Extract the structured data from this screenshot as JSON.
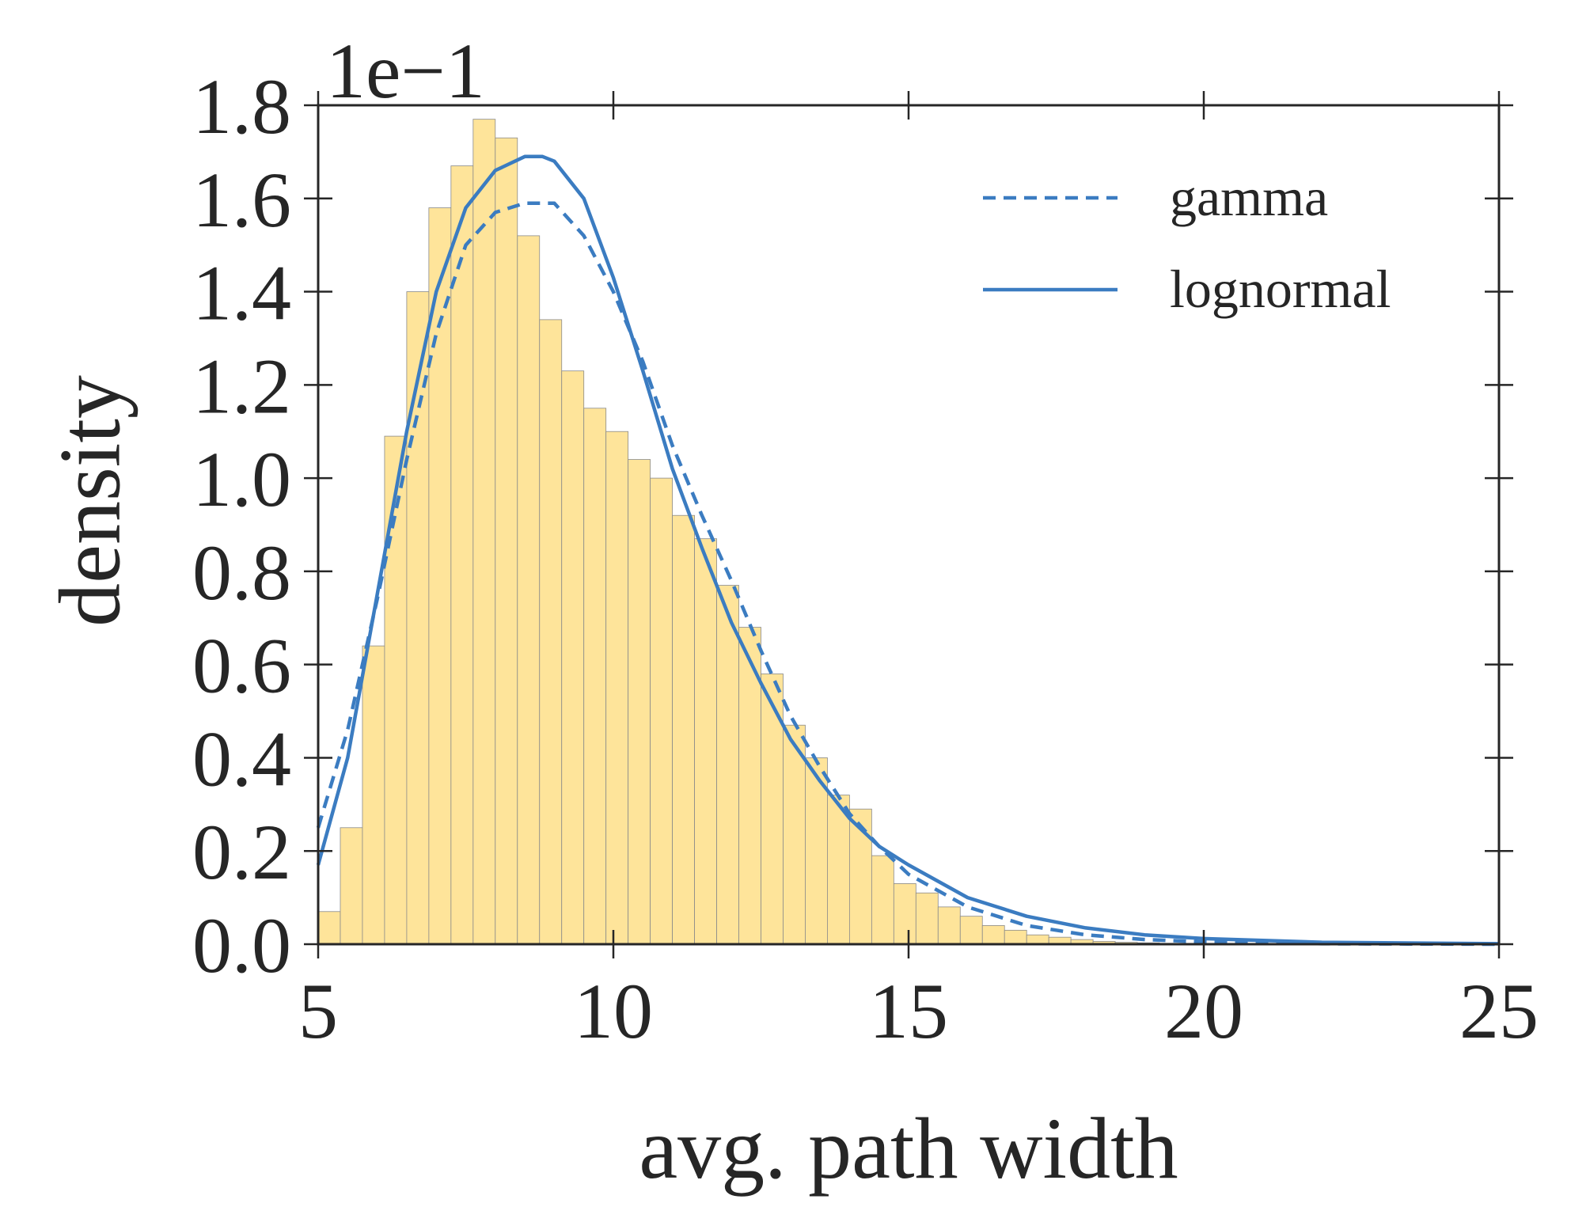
{
  "chart_data": {
    "type": "bar",
    "xlabel": "avg. path width",
    "ylabel": "density",
    "y_scale_label": "1e−1",
    "xlim": [
      5,
      25
    ],
    "ylim": [
      0.0,
      1.8
    ],
    "x_ticks": [
      "5",
      "10",
      "15",
      "20",
      "25"
    ],
    "y_ticks": [
      "0.0",
      "0.2",
      "0.4",
      "0.6",
      "0.8",
      "1.0",
      "1.2",
      "1.4",
      "1.6",
      "1.8"
    ],
    "grid": false,
    "legend_position": "top-right",
    "bin_width": 0.375,
    "histogram": {
      "bin_starts": [
        5.0,
        5.375,
        5.75,
        6.125,
        6.5,
        6.875,
        7.25,
        7.625,
        8.0,
        8.375,
        8.75,
        9.125,
        9.5,
        9.875,
        10.25,
        10.625,
        11.0,
        11.375,
        11.75,
        12.125,
        12.5,
        12.875,
        13.25,
        13.625,
        14.0,
        14.375,
        14.75,
        15.125,
        15.5,
        15.875,
        16.25,
        16.625,
        17.0,
        17.375,
        17.75,
        18.125,
        18.5,
        18.875,
        19.25,
        19.625,
        20.0
      ],
      "values": [
        0.07,
        0.25,
        0.64,
        1.09,
        1.4,
        1.58,
        1.67,
        1.77,
        1.73,
        1.52,
        1.34,
        1.23,
        1.15,
        1.1,
        1.04,
        1.0,
        0.92,
        0.87,
        0.77,
        0.68,
        0.58,
        0.47,
        0.4,
        0.32,
        0.29,
        0.19,
        0.13,
        0.11,
        0.08,
        0.06,
        0.04,
        0.03,
        0.02,
        0.015,
        0.01,
        0.006,
        0.004,
        0.003,
        0.002,
        0.001,
        0.001
      ],
      "color": "#fee49a"
    },
    "series": [
      {
        "name": "gamma",
        "style": "dashed",
        "color": "#3b7cc1",
        "x": [
          5.0,
          5.5,
          6.0,
          6.5,
          7.0,
          7.5,
          8.0,
          8.5,
          9.0,
          9.5,
          10.0,
          10.5,
          11.0,
          11.5,
          12.0,
          12.5,
          13.0,
          13.5,
          14.0,
          14.5,
          15.0,
          16.0,
          17.0,
          18.0,
          19.0,
          20.0,
          22.0,
          25.0
        ],
        "values": [
          0.25,
          0.46,
          0.74,
          1.04,
          1.31,
          1.5,
          1.57,
          1.59,
          1.59,
          1.52,
          1.4,
          1.25,
          1.07,
          0.92,
          0.78,
          0.63,
          0.49,
          0.38,
          0.28,
          0.21,
          0.15,
          0.08,
          0.04,
          0.02,
          0.01,
          0.005,
          0.001,
          0.0
        ]
      },
      {
        "name": "lognormal",
        "style": "solid",
        "color": "#3b7cc1",
        "x": [
          5.0,
          5.5,
          6.0,
          6.5,
          7.0,
          7.5,
          8.0,
          8.5,
          8.8,
          9.0,
          9.5,
          10.0,
          10.5,
          11.0,
          11.5,
          12.0,
          12.5,
          13.0,
          13.5,
          14.0,
          14.5,
          15.0,
          16.0,
          17.0,
          18.0,
          19.0,
          20.0,
          22.0,
          25.0
        ],
        "values": [
          0.17,
          0.4,
          0.75,
          1.1,
          1.4,
          1.58,
          1.66,
          1.69,
          1.69,
          1.68,
          1.6,
          1.43,
          1.23,
          1.02,
          0.85,
          0.69,
          0.56,
          0.44,
          0.35,
          0.27,
          0.21,
          0.17,
          0.1,
          0.06,
          0.035,
          0.02,
          0.012,
          0.004,
          0.001
        ]
      }
    ]
  }
}
